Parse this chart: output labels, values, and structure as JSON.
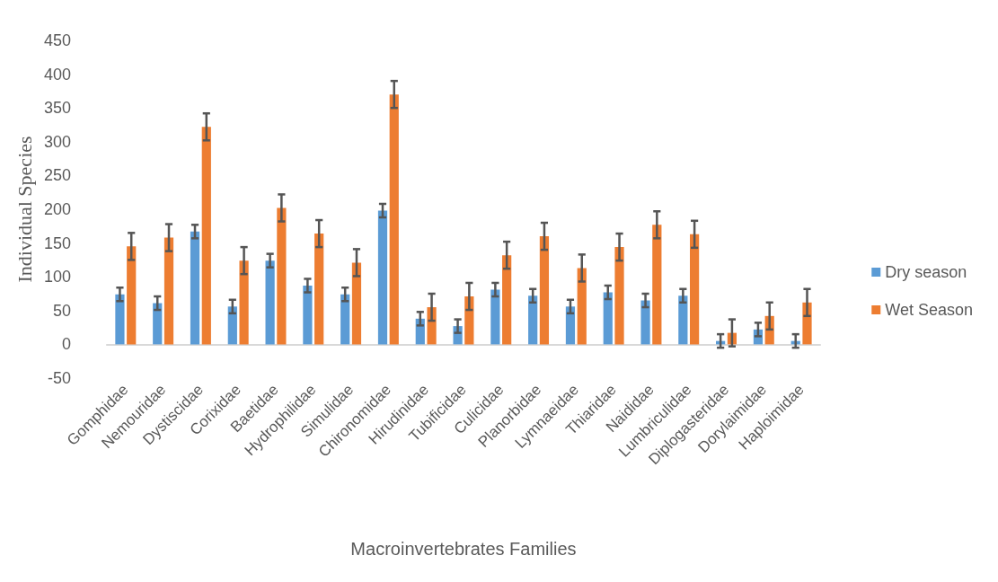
{
  "chart_data": {
    "type": "bar",
    "xlabel": "Macroinvertebrates Families",
    "ylabel": "Individual Species",
    "categories": [
      "Gomphidae",
      "Nemouridae",
      "Dystiscidae",
      "Corixidae",
      "Baetidae",
      "Hydrophilidae",
      "Simulidae",
      "Chironomidae",
      "Hirudinidae",
      "Tubificidae",
      "Culicidae",
      "Planorbidae",
      "Lymnaeidae",
      "Thiaridae",
      "Naididae",
      "Lumbriculidae",
      "Diplogasteridae",
      "Dorylaimidae",
      "Haploimidae"
    ],
    "series": [
      {
        "name": "Dry season",
        "color": "#5b9bd5",
        "values": [
          74,
          61,
          167,
          56,
          124,
          87,
          74,
          198,
          38,
          27,
          81,
          72,
          56,
          77,
          65,
          72,
          5,
          22,
          5
        ],
        "errors": [
          10,
          10,
          10,
          10,
          10,
          10,
          10,
          10,
          10,
          10,
          10,
          10,
          10,
          10,
          10,
          10,
          10,
          10,
          10
        ]
      },
      {
        "name": "Wet Season",
        "color": "#ed7d31",
        "values": [
          145,
          158,
          322,
          124,
          202,
          164,
          121,
          370,
          55,
          71,
          132,
          160,
          113,
          144,
          177,
          163,
          17,
          42,
          62
        ],
        "errors": [
          20,
          20,
          20,
          20,
          20,
          20,
          20,
          20,
          20,
          20,
          20,
          20,
          20,
          20,
          20,
          20,
          20,
          20,
          20
        ]
      }
    ],
    "ylim": [
      -50,
      450
    ],
    "yticks": [
      -50,
      0,
      50,
      100,
      150,
      200,
      250,
      300,
      350,
      400,
      450
    ],
    "grid": false,
    "legend": "right"
  }
}
